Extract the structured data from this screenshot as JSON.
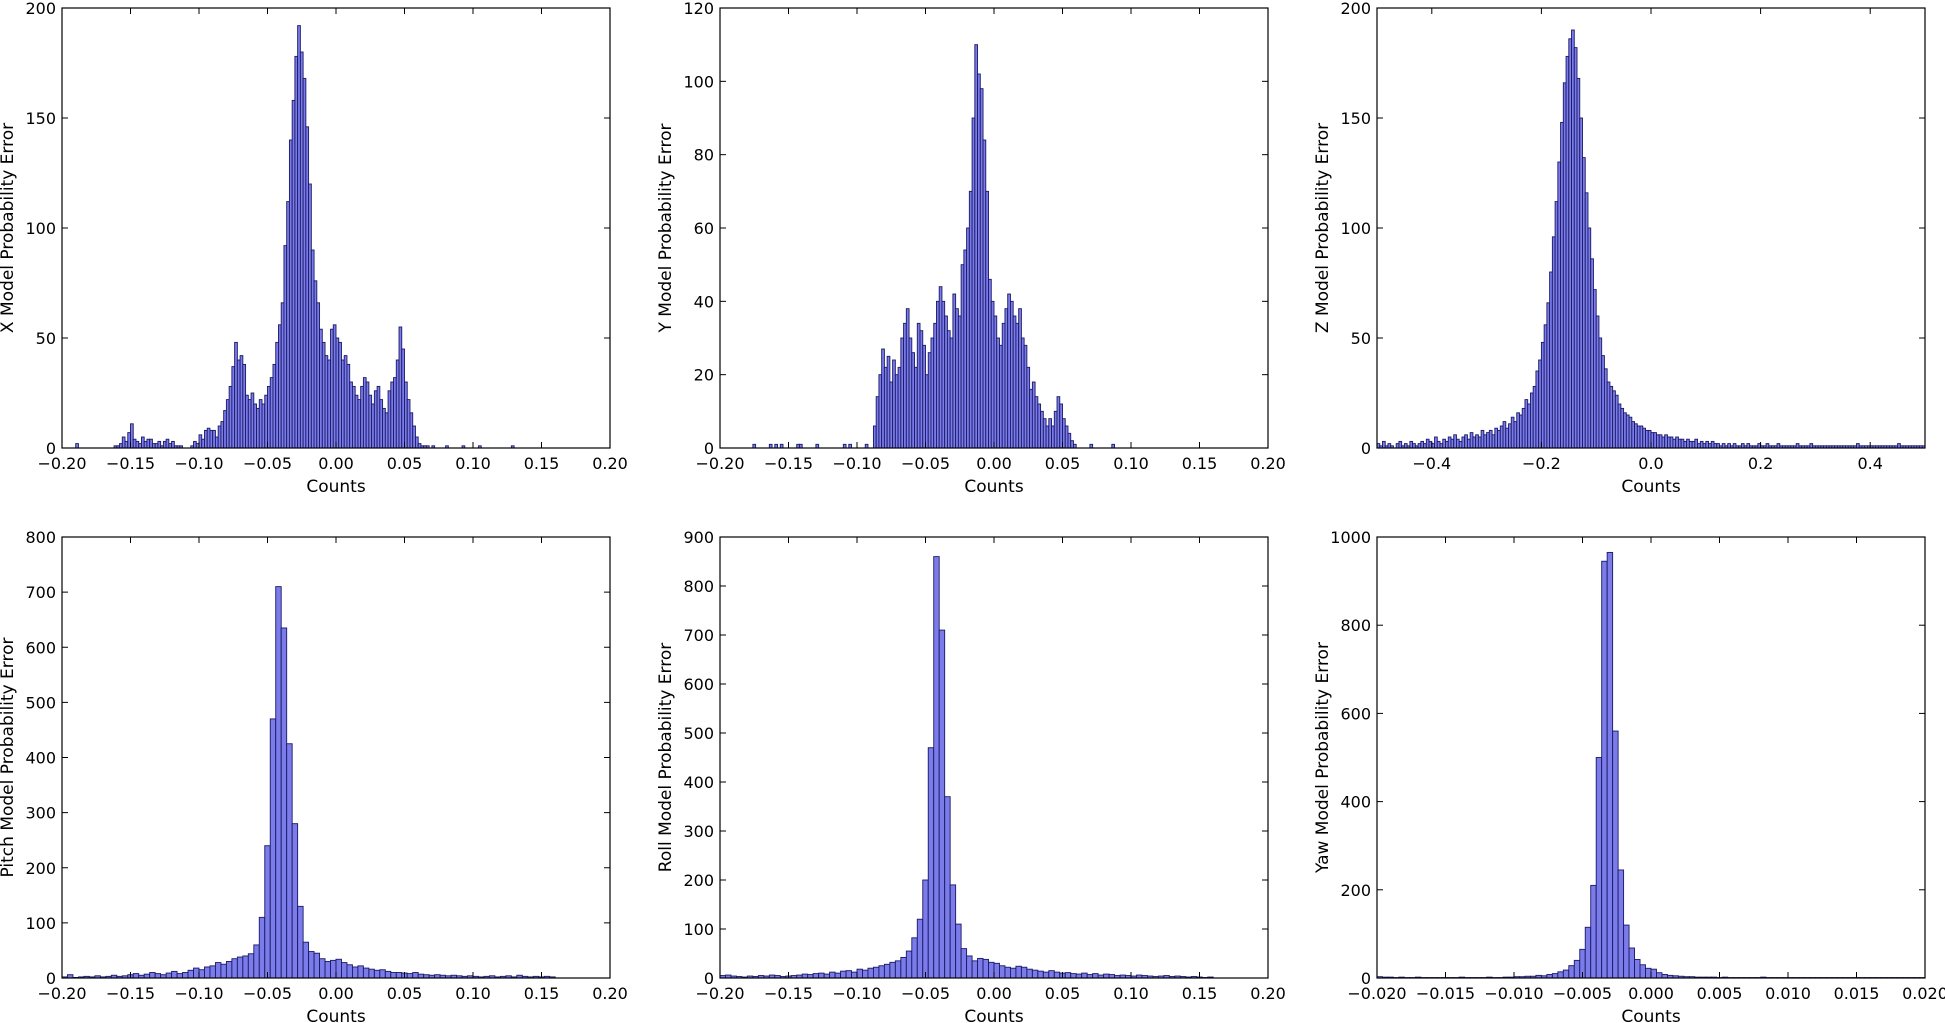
{
  "figure": {
    "colors": {
      "bar_fill": "#7b7bea",
      "bar_edge": "#1a1a66",
      "background": "#ffffff"
    }
  },
  "chart_data": [
    {
      "type": "bar",
      "id": "x",
      "xlabel": "Counts",
      "ylabel": "X Model Probability Error",
      "xlim": [
        -0.2,
        0.2
      ],
      "ylim": [
        0,
        200
      ],
      "xticks": [
        -0.2,
        -0.15,
        -0.1,
        -0.05,
        0.0,
        0.05,
        0.1,
        0.15,
        0.2
      ],
      "xtick_labels": [
        "−0.20",
        "−0.15",
        "−0.10",
        "−0.05",
        "0.00",
        "0.05",
        "0.10",
        "0.15",
        "0.20"
      ],
      "yticks": [
        0,
        50,
        100,
        150,
        200
      ],
      "ytick_labels": [
        "0",
        "50",
        "100",
        "150",
        "200"
      ],
      "bin_start": -0.2,
      "bin_width": 0.002,
      "values": [
        0,
        0,
        0,
        0,
        0,
        2,
        0,
        0,
        0,
        0,
        0,
        0,
        0,
        0,
        0,
        0,
        0,
        0,
        0,
        1,
        1,
        2,
        5,
        3,
        7,
        11,
        4,
        3,
        2,
        5,
        3,
        4,
        4,
        2,
        2,
        3,
        1,
        3,
        4,
        2,
        3,
        1,
        1,
        1,
        0,
        0,
        0,
        1,
        3,
        2,
        6,
        4,
        8,
        9,
        8,
        8,
        5,
        10,
        12,
        17,
        22,
        28,
        37,
        48,
        40,
        42,
        38,
        24,
        22,
        25,
        20,
        18,
        22,
        20,
        24,
        28,
        32,
        38,
        48,
        56,
        66,
        92,
        112,
        140,
        158,
        178,
        192,
        180,
        168,
        146,
        120,
        90,
        76,
        66,
        54,
        48,
        42,
        40,
        54,
        56,
        50,
        48,
        40,
        42,
        38,
        30,
        28,
        24,
        22,
        28,
        32,
        30,
        24,
        20,
        26,
        28,
        22,
        18,
        16,
        26,
        30,
        32,
        40,
        55,
        45,
        30,
        22,
        16,
        10,
        5,
        2,
        1,
        1,
        1,
        0,
        1,
        0,
        0,
        0,
        0,
        1,
        0,
        0,
        0,
        0,
        0,
        1,
        0,
        0,
        0,
        0,
        0,
        1,
        0,
        0,
        0,
        0,
        0,
        0,
        0,
        0,
        0,
        0,
        0,
        1,
        0,
        0,
        0,
        0,
        0,
        0,
        0,
        0,
        0,
        0,
        0,
        0,
        0,
        0,
        0,
        0,
        0,
        0,
        0,
        0,
        0,
        0,
        0,
        0,
        0,
        0,
        0,
        0,
        0,
        0,
        0,
        0,
        0,
        0,
        0
      ]
    },
    {
      "type": "bar",
      "id": "y",
      "xlabel": "Counts",
      "ylabel": "Y Model Probability Error",
      "xlim": [
        -0.2,
        0.2
      ],
      "ylim": [
        0,
        120
      ],
      "xticks": [
        -0.2,
        -0.15,
        -0.1,
        -0.05,
        0.0,
        0.05,
        0.1,
        0.15,
        0.2
      ],
      "xtick_labels": [
        "−0.20",
        "−0.15",
        "−0.10",
        "−0.05",
        "0.00",
        "0.05",
        "0.10",
        "0.15",
        "0.20"
      ],
      "yticks": [
        0,
        20,
        40,
        60,
        80,
        100,
        120
      ],
      "ytick_labels": [
        "0",
        "20",
        "40",
        "60",
        "80",
        "100",
        "120"
      ],
      "bin_start": -0.2,
      "bin_width": 0.002,
      "values": [
        0,
        0,
        0,
        0,
        0,
        0,
        0,
        0,
        0,
        0,
        0,
        0,
        1,
        0,
        0,
        0,
        0,
        0,
        1,
        0,
        1,
        0,
        1,
        0,
        0,
        0,
        0,
        0,
        1,
        1,
        0,
        0,
        0,
        0,
        0,
        1,
        0,
        0,
        0,
        0,
        0,
        0,
        0,
        0,
        0,
        1,
        0,
        1,
        0,
        0,
        0,
        0,
        0,
        1,
        0,
        0,
        6,
        14,
        20,
        27,
        22,
        25,
        18,
        24,
        20,
        22,
        30,
        34,
        38,
        30,
        26,
        22,
        34,
        32,
        28,
        20,
        26,
        30,
        34,
        40,
        44,
        40,
        36,
        32,
        30,
        42,
        38,
        36,
        50,
        54,
        60,
        70,
        90,
        110,
        102,
        98,
        84,
        70,
        46,
        40,
        36,
        30,
        28,
        34,
        38,
        42,
        40,
        36,
        34,
        38,
        30,
        28,
        22,
        16,
        18,
        14,
        12,
        10,
        8,
        6,
        8,
        6,
        10,
        14,
        12,
        8,
        6,
        4,
        2,
        1,
        0,
        0,
        0,
        0,
        0,
        1,
        0,
        0,
        0,
        0,
        0,
        0,
        0,
        1,
        0,
        0,
        0,
        0,
        0,
        0,
        0,
        0,
        0,
        0,
        0,
        0,
        0,
        0,
        0,
        0,
        0,
        0,
        0,
        0,
        0,
        0,
        0,
        0,
        0,
        0,
        0,
        0,
        0,
        0,
        0,
        0,
        0,
        0,
        0,
        0,
        0,
        0,
        0,
        0,
        0,
        0,
        0,
        0,
        0,
        0,
        0,
        0,
        0,
        0,
        0,
        0,
        0,
        0,
        0,
        0,
        0,
        0,
        0,
        0,
        0,
        0,
        0
      ]
    },
    {
      "type": "bar",
      "id": "z",
      "xlabel": "Counts",
      "ylabel": "Z Model Probability Error",
      "xlim": [
        -0.5,
        0.5
      ],
      "ylim": [
        0,
        200
      ],
      "xticks": [
        -0.4,
        -0.2,
        0.0,
        0.2,
        0.4
      ],
      "xtick_labels": [
        "−0.4",
        "−0.2",
        "0.0",
        "0.2",
        "0.4"
      ],
      "yticks": [
        0,
        50,
        100,
        150,
        200
      ],
      "ytick_labels": [
        "0",
        "50",
        "100",
        "150",
        "200"
      ],
      "bin_start": -0.5,
      "bin_width": 0.005,
      "values": [
        2,
        1,
        3,
        1,
        2,
        1,
        0,
        2,
        3,
        1,
        2,
        1,
        3,
        2,
        1,
        2,
        3,
        2,
        4,
        3,
        2,
        5,
        3,
        2,
        4,
        3,
        5,
        4,
        6,
        4,
        3,
        5,
        6,
        4,
        7,
        5,
        6,
        5,
        8,
        6,
        7,
        8,
        6,
        9,
        8,
        10,
        12,
        9,
        11,
        14,
        12,
        16,
        15,
        18,
        22,
        20,
        25,
        28,
        35,
        40,
        48,
        56,
        66,
        80,
        96,
        112,
        130,
        148,
        166,
        178,
        186,
        190,
        182,
        168,
        150,
        132,
        116,
        100,
        86,
        72,
        60,
        50,
        42,
        36,
        30,
        28,
        26,
        24,
        20,
        18,
        16,
        15,
        14,
        12,
        11,
        10,
        10,
        9,
        8,
        8,
        7,
        7,
        6,
        6,
        5,
        6,
        5,
        5,
        4,
        5,
        4,
        4,
        3,
        4,
        3,
        3,
        4,
        2,
        3,
        2,
        3,
        2,
        3,
        2,
        2,
        1,
        2,
        1,
        2,
        1,
        2,
        1,
        1,
        2,
        1,
        2,
        1,
        1,
        1,
        2,
        1,
        1,
        2,
        1,
        1,
        1,
        2,
        1,
        1,
        1,
        1,
        1,
        1,
        2,
        1,
        1,
        1,
        1,
        2,
        1,
        1,
        1,
        1,
        1,
        1,
        1,
        1,
        1,
        1,
        1,
        1,
        1,
        1,
        1,
        1,
        2,
        1,
        1,
        1,
        1,
        1,
        1,
        1,
        1,
        1,
        1,
        1,
        1,
        1,
        1,
        2,
        1,
        1,
        1,
        1,
        1,
        1,
        1,
        1,
        1
      ]
    },
    {
      "type": "bar",
      "id": "pitch",
      "xlabel": "Counts",
      "ylabel": "Pitch Model Probability Error",
      "xlim": [
        -0.2,
        0.2
      ],
      "ylim": [
        0,
        800
      ],
      "xticks": [
        -0.2,
        -0.15,
        -0.1,
        -0.05,
        0.0,
        0.05,
        0.1,
        0.15,
        0.2
      ],
      "xtick_labels": [
        "−0.20",
        "−0.15",
        "−0.10",
        "−0.05",
        "0.00",
        "0.05",
        "0.10",
        "0.15",
        "0.20"
      ],
      "yticks": [
        0,
        100,
        200,
        300,
        400,
        500,
        600,
        700,
        800
      ],
      "ytick_labels": [
        "0",
        "100",
        "200",
        "300",
        "400",
        "500",
        "600",
        "700",
        "800"
      ],
      "bin_start": -0.2,
      "bin_width": 0.004,
      "values": [
        2,
        6,
        1,
        2,
        3,
        2,
        4,
        2,
        3,
        5,
        3,
        4,
        6,
        8,
        5,
        7,
        10,
        8,
        6,
        9,
        12,
        8,
        10,
        14,
        18,
        15,
        20,
        22,
        28,
        25,
        30,
        35,
        38,
        40,
        44,
        60,
        110,
        240,
        470,
        710,
        635,
        425,
        280,
        130,
        65,
        48,
        45,
        35,
        30,
        32,
        34,
        28,
        24,
        20,
        22,
        18,
        16,
        14,
        15,
        12,
        10,
        10,
        9,
        8,
        10,
        7,
        6,
        5,
        6,
        5,
        4,
        5,
        4,
        3,
        4,
        3,
        2,
        3,
        4,
        2,
        3,
        4,
        2,
        5,
        3,
        2,
        3,
        2,
        3,
        2
      ]
    },
    {
      "type": "bar",
      "id": "roll",
      "xlabel": "Counts",
      "ylabel": "Roll Model Probability Error",
      "xlim": [
        -0.2,
        0.2
      ],
      "ylim": [
        0,
        900
      ],
      "xticks": [
        -0.2,
        -0.15,
        -0.1,
        -0.05,
        0.0,
        0.05,
        0.1,
        0.15,
        0.2
      ],
      "xtick_labels": [
        "−0.20",
        "−0.15",
        "−0.10",
        "−0.05",
        "0.00",
        "0.05",
        "0.10",
        "0.15",
        "0.20"
      ],
      "yticks": [
        0,
        100,
        200,
        300,
        400,
        500,
        600,
        700,
        800,
        900
      ],
      "ytick_labels": [
        "0",
        "100",
        "200",
        "300",
        "400",
        "500",
        "600",
        "700",
        "800",
        "900"
      ],
      "bin_start": -0.2,
      "bin_width": 0.004,
      "values": [
        5,
        6,
        4,
        3,
        2,
        4,
        3,
        5,
        4,
        6,
        5,
        3,
        4,
        5,
        6,
        8,
        7,
        9,
        10,
        8,
        12,
        10,
        14,
        15,
        12,
        18,
        16,
        20,
        22,
        25,
        28,
        32,
        35,
        42,
        55,
        82,
        120,
        200,
        470,
        860,
        710,
        370,
        190,
        110,
        60,
        45,
        35,
        40,
        38,
        32,
        30,
        25,
        22,
        20,
        24,
        22,
        18,
        16,
        14,
        12,
        15,
        12,
        10,
        11,
        9,
        8,
        10,
        7,
        9,
        6,
        8,
        7,
        5,
        6,
        5,
        4,
        6,
        5,
        4,
        3,
        4,
        5,
        3,
        4,
        3,
        2,
        3,
        2,
        1,
        2
      ]
    },
    {
      "type": "bar",
      "id": "yaw",
      "xlabel": "Counts",
      "ylabel": "Yaw Model Probability Error",
      "xlim": [
        -0.02,
        0.02
      ],
      "ylim": [
        0,
        1000
      ],
      "xticks": [
        -0.02,
        -0.015,
        -0.01,
        -0.005,
        0.0,
        0.005,
        0.01,
        0.015,
        0.02
      ],
      "xtick_labels": [
        "−0.020",
        "−0.015",
        "−0.010",
        "−0.005",
        "0.000",
        "0.005",
        "0.010",
        "0.015",
        "0.020"
      ],
      "yticks": [
        0,
        200,
        400,
        600,
        800,
        1000
      ],
      "ytick_labels": [
        "0",
        "200",
        "400",
        "600",
        "800",
        "1000"
      ],
      "bin_start": -0.02,
      "bin_width": 0.0004,
      "values": [
        3,
        2,
        2,
        1,
        2,
        1,
        1,
        2,
        1,
        1,
        1,
        1,
        1,
        1,
        1,
        2,
        1,
        1,
        1,
        1,
        2,
        1,
        1,
        2,
        2,
        3,
        3,
        4,
        4,
        6,
        5,
        8,
        10,
        14,
        18,
        28,
        40,
        65,
        115,
        210,
        500,
        945,
        965,
        560,
        245,
        120,
        68,
        42,
        30,
        22,
        20,
        12,
        8,
        6,
        5,
        4,
        3,
        3,
        2,
        2,
        2,
        2,
        1,
        2,
        1,
        1,
        1,
        1,
        1,
        1,
        2,
        1,
        1,
        1,
        1,
        1,
        1,
        1,
        1,
        1,
        1,
        1,
        1,
        1,
        1,
        1,
        1,
        1,
        1,
        1,
        1,
        1,
        1,
        1,
        1,
        1,
        1,
        1,
        1,
        1
      ]
    }
  ]
}
